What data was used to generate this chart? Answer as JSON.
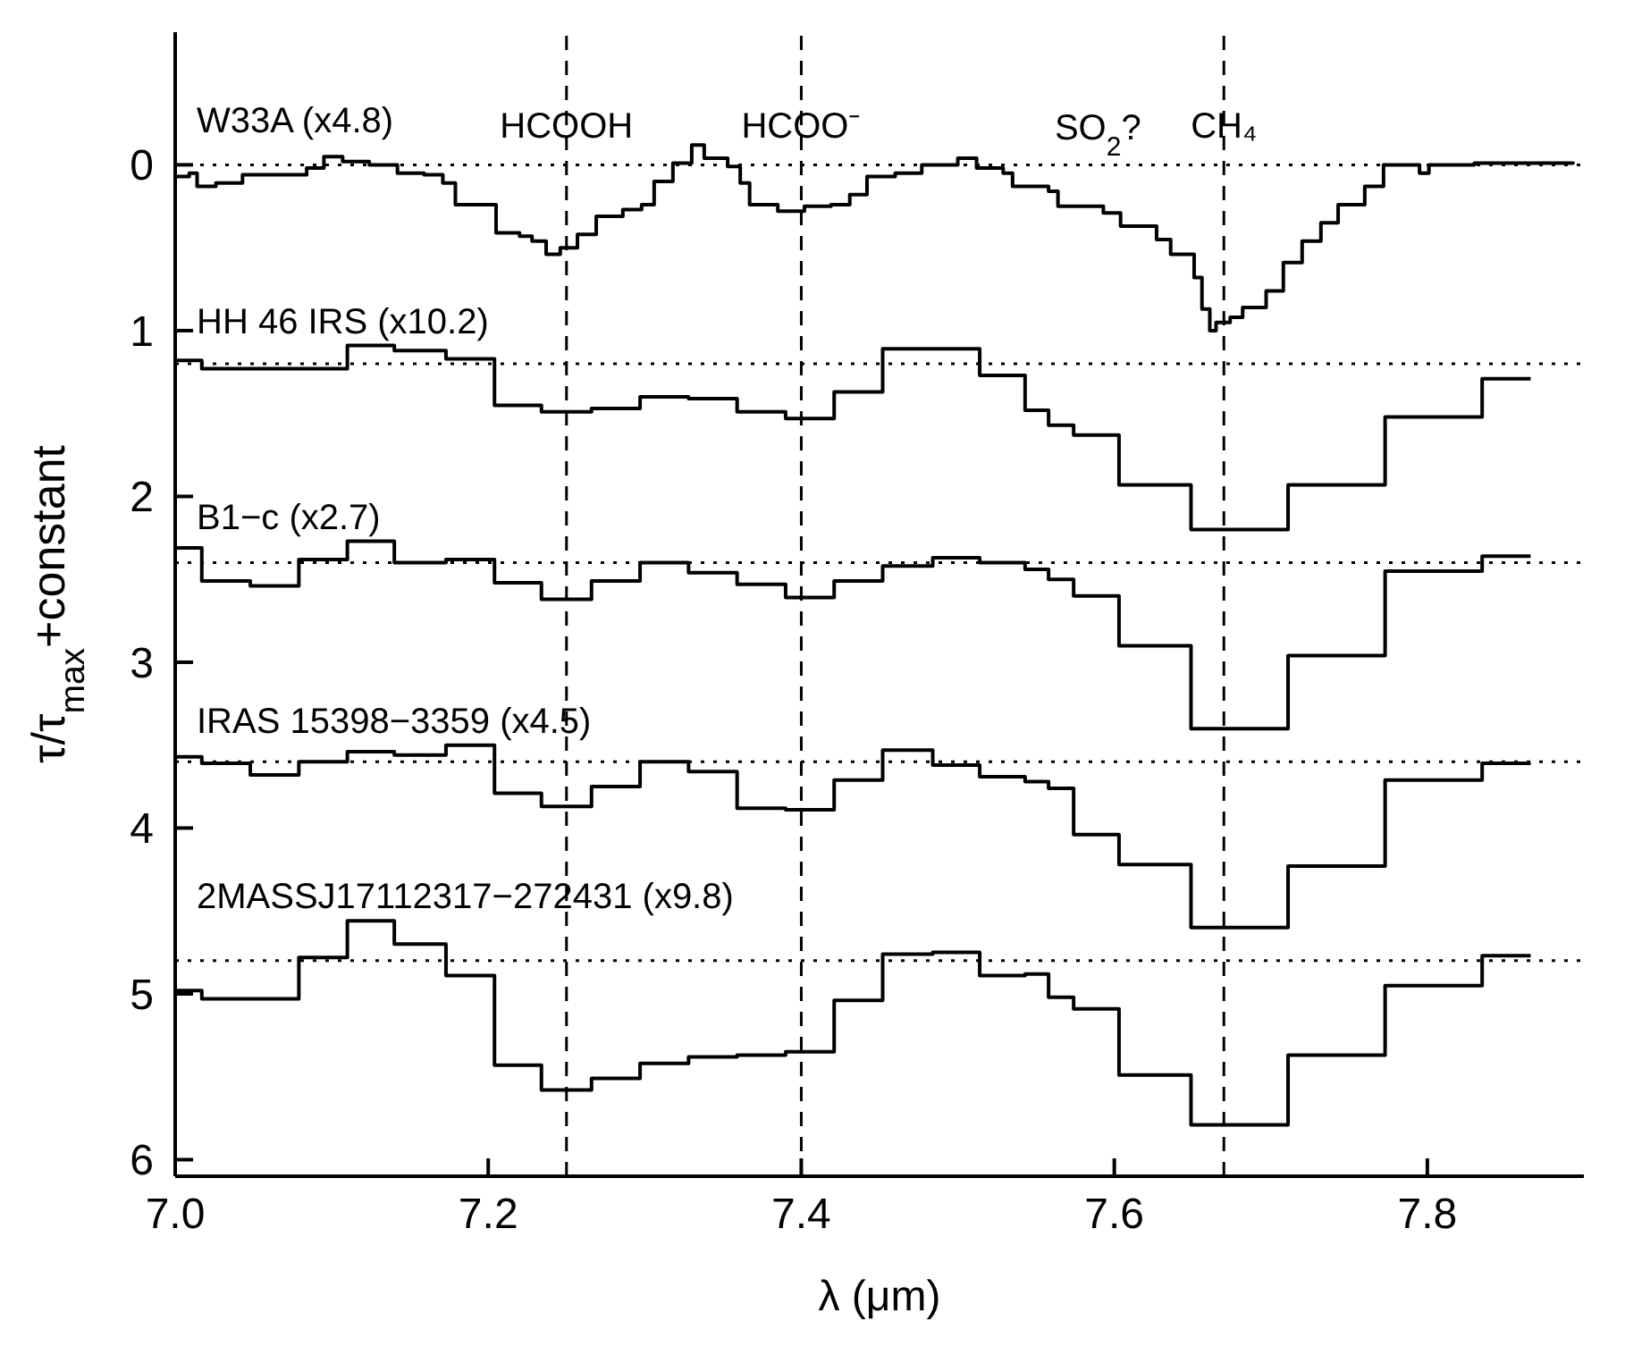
{
  "chart_data": {
    "type": "step",
    "xlabel": "λ (μm)",
    "ylabel": "τ/τ$_{max}$+constant",
    "xlim": [
      7.0,
      7.9
    ],
    "xticks": [
      {
        "value": 7.0,
        "label": "7.0"
      },
      7.2,
      7.4,
      7.6,
      7.8
    ],
    "ylim": [
      6.1,
      -0.8
    ],
    "yticks": [
      0,
      1,
      2,
      3,
      4,
      5,
      6
    ],
    "line_style": "solid",
    "marker": "none",
    "ref_lines": [
      {
        "axis": "x",
        "value": 7.25,
        "label": "HCOOH",
        "line_style": "dashed",
        "color": "#000000"
      },
      {
        "axis": "x",
        "value": 7.4,
        "label": "HCOO⁻",
        "line_style": "dashed",
        "color": "#000000"
      },
      {
        "axis": "x",
        "value": 7.67,
        "label": "CH₄",
        "line_style": "dashed",
        "color": "#000000"
      },
      {
        "axis": "y",
        "value": 0,
        "line_style": "dotted",
        "color": "#000000"
      },
      {
        "axis": "y",
        "value": 1.2,
        "line_style": "dotted",
        "color": "#000000"
      },
      {
        "axis": "y",
        "value": 2.4,
        "line_style": "dotted",
        "color": "#000000"
      },
      {
        "axis": "y",
        "value": 3.6,
        "line_style": "dotted",
        "color": "#000000"
      },
      {
        "axis": "y",
        "value": 4.8,
        "line_style": "dotted",
        "color": "#000000"
      }
    ],
    "annotations": [
      "SO$_{2}$?"
    ],
    "series": [
      {
        "name": "W33A (x4.8)",
        "color": "#000000",
        "x": [
          7.0,
          7.009,
          7.014,
          7.026,
          7.043,
          7.066,
          7.084,
          7.095,
          7.107,
          7.124,
          7.142,
          7.159,
          7.171,
          7.179,
          7.194,
          7.205,
          7.22,
          7.228,
          7.237,
          7.246,
          7.257,
          7.269,
          7.286,
          7.298,
          7.306,
          7.318,
          7.33,
          7.338,
          7.353,
          7.361,
          7.367,
          7.385,
          7.402,
          7.419,
          7.431,
          7.442,
          7.46,
          7.477,
          7.5,
          7.512,
          7.529,
          7.535,
          7.558,
          7.564,
          7.593,
          7.604,
          7.627,
          7.636,
          7.651,
          7.656,
          7.661,
          7.665,
          7.674,
          7.682,
          7.697,
          7.708,
          7.72,
          7.732,
          7.743,
          7.76,
          7.772,
          7.795,
          7.801,
          7.83,
          7.859,
          7.893
        ],
        "values": [
          0.07,
          0.05,
          0.13,
          0.11,
          0.06,
          0.06,
          0.02,
          -0.05,
          -0.02,
          0.0,
          0.05,
          0.06,
          0.11,
          0.24,
          0.24,
          0.41,
          0.43,
          0.46,
          0.54,
          0.5,
          0.42,
          0.31,
          0.27,
          0.24,
          0.1,
          -0.01,
          -0.12,
          -0.04,
          0.01,
          0.11,
          0.24,
          0.28,
          0.25,
          0.24,
          0.18,
          0.07,
          0.05,
          0.0,
          -0.04,
          0.02,
          0.05,
          0.13,
          0.16,
          0.25,
          0.29,
          0.37,
          0.45,
          0.54,
          0.68,
          0.87,
          1.0,
          0.95,
          0.92,
          0.86,
          0.76,
          0.59,
          0.46,
          0.35,
          0.24,
          0.13,
          0.0,
          0.05,
          0.0,
          -0.01,
          -0.01,
          -0.02
        ]
      },
      {
        "name": "HH 46 IRS (x10.2)",
        "color": "#000000",
        "x": [
          7.0,
          7.017,
          7.11,
          7.14,
          7.173,
          7.204,
          7.234,
          7.266,
          7.297,
          7.328,
          7.359,
          7.39,
          7.421,
          7.452,
          7.514,
          7.543,
          7.558,
          7.574,
          7.603,
          7.649,
          7.711,
          7.773,
          7.835,
          7.866
        ],
        "values": [
          1.18,
          1.23,
          1.09,
          1.12,
          1.17,
          1.45,
          1.49,
          1.47,
          1.4,
          1.41,
          1.49,
          1.53,
          1.37,
          1.11,
          1.27,
          1.48,
          1.57,
          1.63,
          1.93,
          2.2,
          1.93,
          1.52,
          1.29,
          1.29
        ]
      },
      {
        "name": "B1−c (x2.7)",
        "color": "#000000",
        "x": [
          7.0,
          7.017,
          7.048,
          7.079,
          7.11,
          7.14,
          7.173,
          7.204,
          7.234,
          7.266,
          7.297,
          7.328,
          7.359,
          7.39,
          7.421,
          7.452,
          7.484,
          7.514,
          7.543,
          7.558,
          7.574,
          7.603,
          7.649,
          7.711,
          7.773,
          7.835,
          7.866
        ],
        "values": [
          2.31,
          2.51,
          2.54,
          2.38,
          2.27,
          2.4,
          2.38,
          2.52,
          2.62,
          2.51,
          2.4,
          2.46,
          2.53,
          2.61,
          2.51,
          2.42,
          2.37,
          2.4,
          2.44,
          2.5,
          2.6,
          2.9,
          3.4,
          2.96,
          2.45,
          2.36,
          2.36
        ]
      },
      {
        "name": "IRAS 15398−3359 (x4.5)",
        "color": "#000000",
        "x": [
          7.0,
          7.017,
          7.048,
          7.079,
          7.11,
          7.14,
          7.173,
          7.204,
          7.234,
          7.266,
          7.297,
          7.328,
          7.359,
          7.39,
          7.421,
          7.452,
          7.484,
          7.514,
          7.543,
          7.558,
          7.574,
          7.603,
          7.649,
          7.711,
          7.773,
          7.835,
          7.866
        ],
        "values": [
          3.57,
          3.61,
          3.68,
          3.6,
          3.54,
          3.56,
          3.5,
          3.79,
          3.87,
          3.75,
          3.6,
          3.66,
          3.88,
          3.89,
          3.71,
          3.53,
          3.62,
          3.69,
          3.72,
          3.76,
          4.04,
          4.22,
          4.6,
          4.23,
          3.71,
          3.61,
          3.61
        ]
      },
      {
        "name": "2MASSJ17112317−272431 (x9.8)",
        "color": "#000000",
        "x": [
          7.0,
          7.017,
          7.079,
          7.11,
          7.14,
          7.173,
          7.204,
          7.234,
          7.266,
          7.297,
          7.328,
          7.359,
          7.39,
          7.421,
          7.452,
          7.484,
          7.514,
          7.543,
          7.558,
          7.574,
          7.603,
          7.649,
          7.711,
          7.773,
          7.835,
          7.866
        ],
        "values": [
          4.98,
          5.03,
          4.78,
          4.56,
          4.7,
          4.89,
          5.43,
          5.58,
          5.51,
          5.42,
          5.38,
          5.37,
          5.35,
          5.04,
          4.76,
          4.75,
          4.89,
          4.88,
          5.02,
          5.09,
          5.49,
          5.79,
          5.37,
          4.95,
          4.77,
          4.77
        ]
      }
    ]
  }
}
